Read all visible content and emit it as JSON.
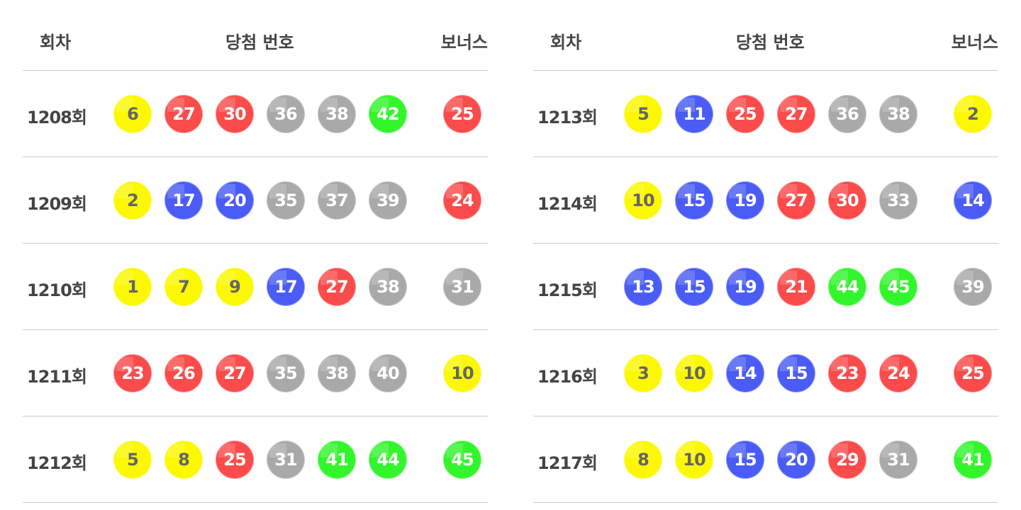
{
  "headers": {
    "round": "회차",
    "numbers": "당첨 번호",
    "bonus": "보너스"
  },
  "round_suffix": "회",
  "colors": {
    "yellow": "#fbf800",
    "blue": "#4a5cf5",
    "red": "#fb4b4b",
    "gray": "#a9a9a9",
    "green": "#33f52c",
    "yellow_text": "#666666",
    "text": "#ffffff"
  },
  "tables": [
    {
      "rows": [
        {
          "round": "1208회",
          "numbers": [
            6,
            27,
            30,
            36,
            38,
            42
          ],
          "bonus": 25
        },
        {
          "round": "1209회",
          "numbers": [
            2,
            17,
            20,
            35,
            37,
            39
          ],
          "bonus": 24
        },
        {
          "round": "1210회",
          "numbers": [
            1,
            7,
            9,
            17,
            27,
            38
          ],
          "bonus": 31
        },
        {
          "round": "1211회",
          "numbers": [
            23,
            26,
            27,
            35,
            38,
            40
          ],
          "bonus": 10
        },
        {
          "round": "1212회",
          "numbers": [
            5,
            8,
            25,
            31,
            41,
            44
          ],
          "bonus": 45
        }
      ]
    },
    {
      "rows": [
        {
          "round": "1213회",
          "numbers": [
            5,
            11,
            25,
            27,
            36,
            38
          ],
          "bonus": 2
        },
        {
          "round": "1214회",
          "numbers": [
            10,
            15,
            19,
            27,
            30,
            33
          ],
          "bonus": 14
        },
        {
          "round": "1215회",
          "numbers": [
            13,
            15,
            19,
            21,
            44,
            45
          ],
          "bonus": 39
        },
        {
          "round": "1216회",
          "numbers": [
            3,
            10,
            14,
            15,
            23,
            24
          ],
          "bonus": 25
        },
        {
          "round": "1217회",
          "numbers": [
            8,
            10,
            15,
            20,
            29,
            31
          ],
          "bonus": 41
        }
      ]
    }
  ]
}
